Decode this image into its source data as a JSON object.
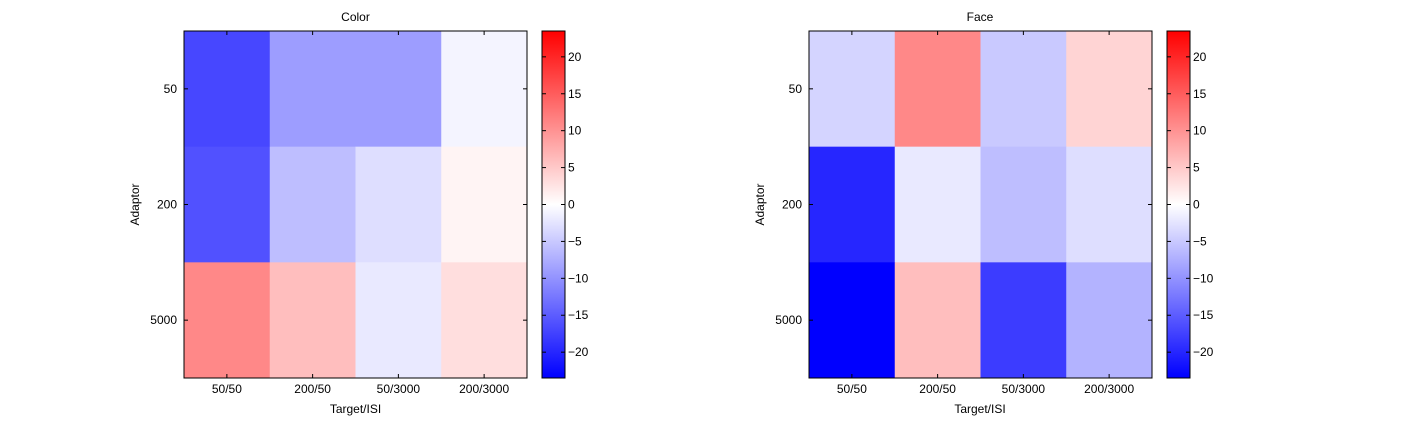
{
  "chart_data": [
    {
      "type": "heatmap",
      "title": "Color",
      "xlabel": "Target/ISI",
      "ylabel": "Adaptor",
      "x_categories": [
        "50/50",
        "200/50",
        "50/3000",
        "200/3000"
      ],
      "y_categories": [
        "50",
        "200",
        "5000"
      ],
      "values": [
        [
          -17,
          -9,
          -9,
          -1
        ],
        [
          -16,
          -6,
          -3,
          1
        ],
        [
          11,
          6,
          -2,
          3
        ]
      ],
      "colorbar": {
        "range": [
          -23.5,
          23.5
        ],
        "ticks": [
          -20,
          -15,
          -10,
          -5,
          0,
          5,
          10,
          15,
          20
        ],
        "colormap": [
          "#0000ff",
          "#ffffff",
          "#ff0000"
        ]
      }
    },
    {
      "type": "heatmap",
      "title": "Face",
      "xlabel": "Target/ISI",
      "ylabel": "Adaptor",
      "x_categories": [
        "50/50",
        "200/50",
        "50/3000",
        "200/3000"
      ],
      "y_categories": [
        "50",
        "200",
        "5000"
      ],
      "values": [
        [
          -4,
          11,
          -5,
          4
        ],
        [
          -20,
          -2,
          -6,
          -3
        ],
        [
          -23.5,
          6,
          -18,
          -7
        ]
      ],
      "colorbar": {
        "range": [
          -23.5,
          23.5
        ],
        "ticks": [
          -20,
          -15,
          -10,
          -5,
          0,
          5,
          10,
          15,
          20
        ],
        "colormap": [
          "#0000ff",
          "#ffffff",
          "#ff0000"
        ]
      }
    }
  ]
}
